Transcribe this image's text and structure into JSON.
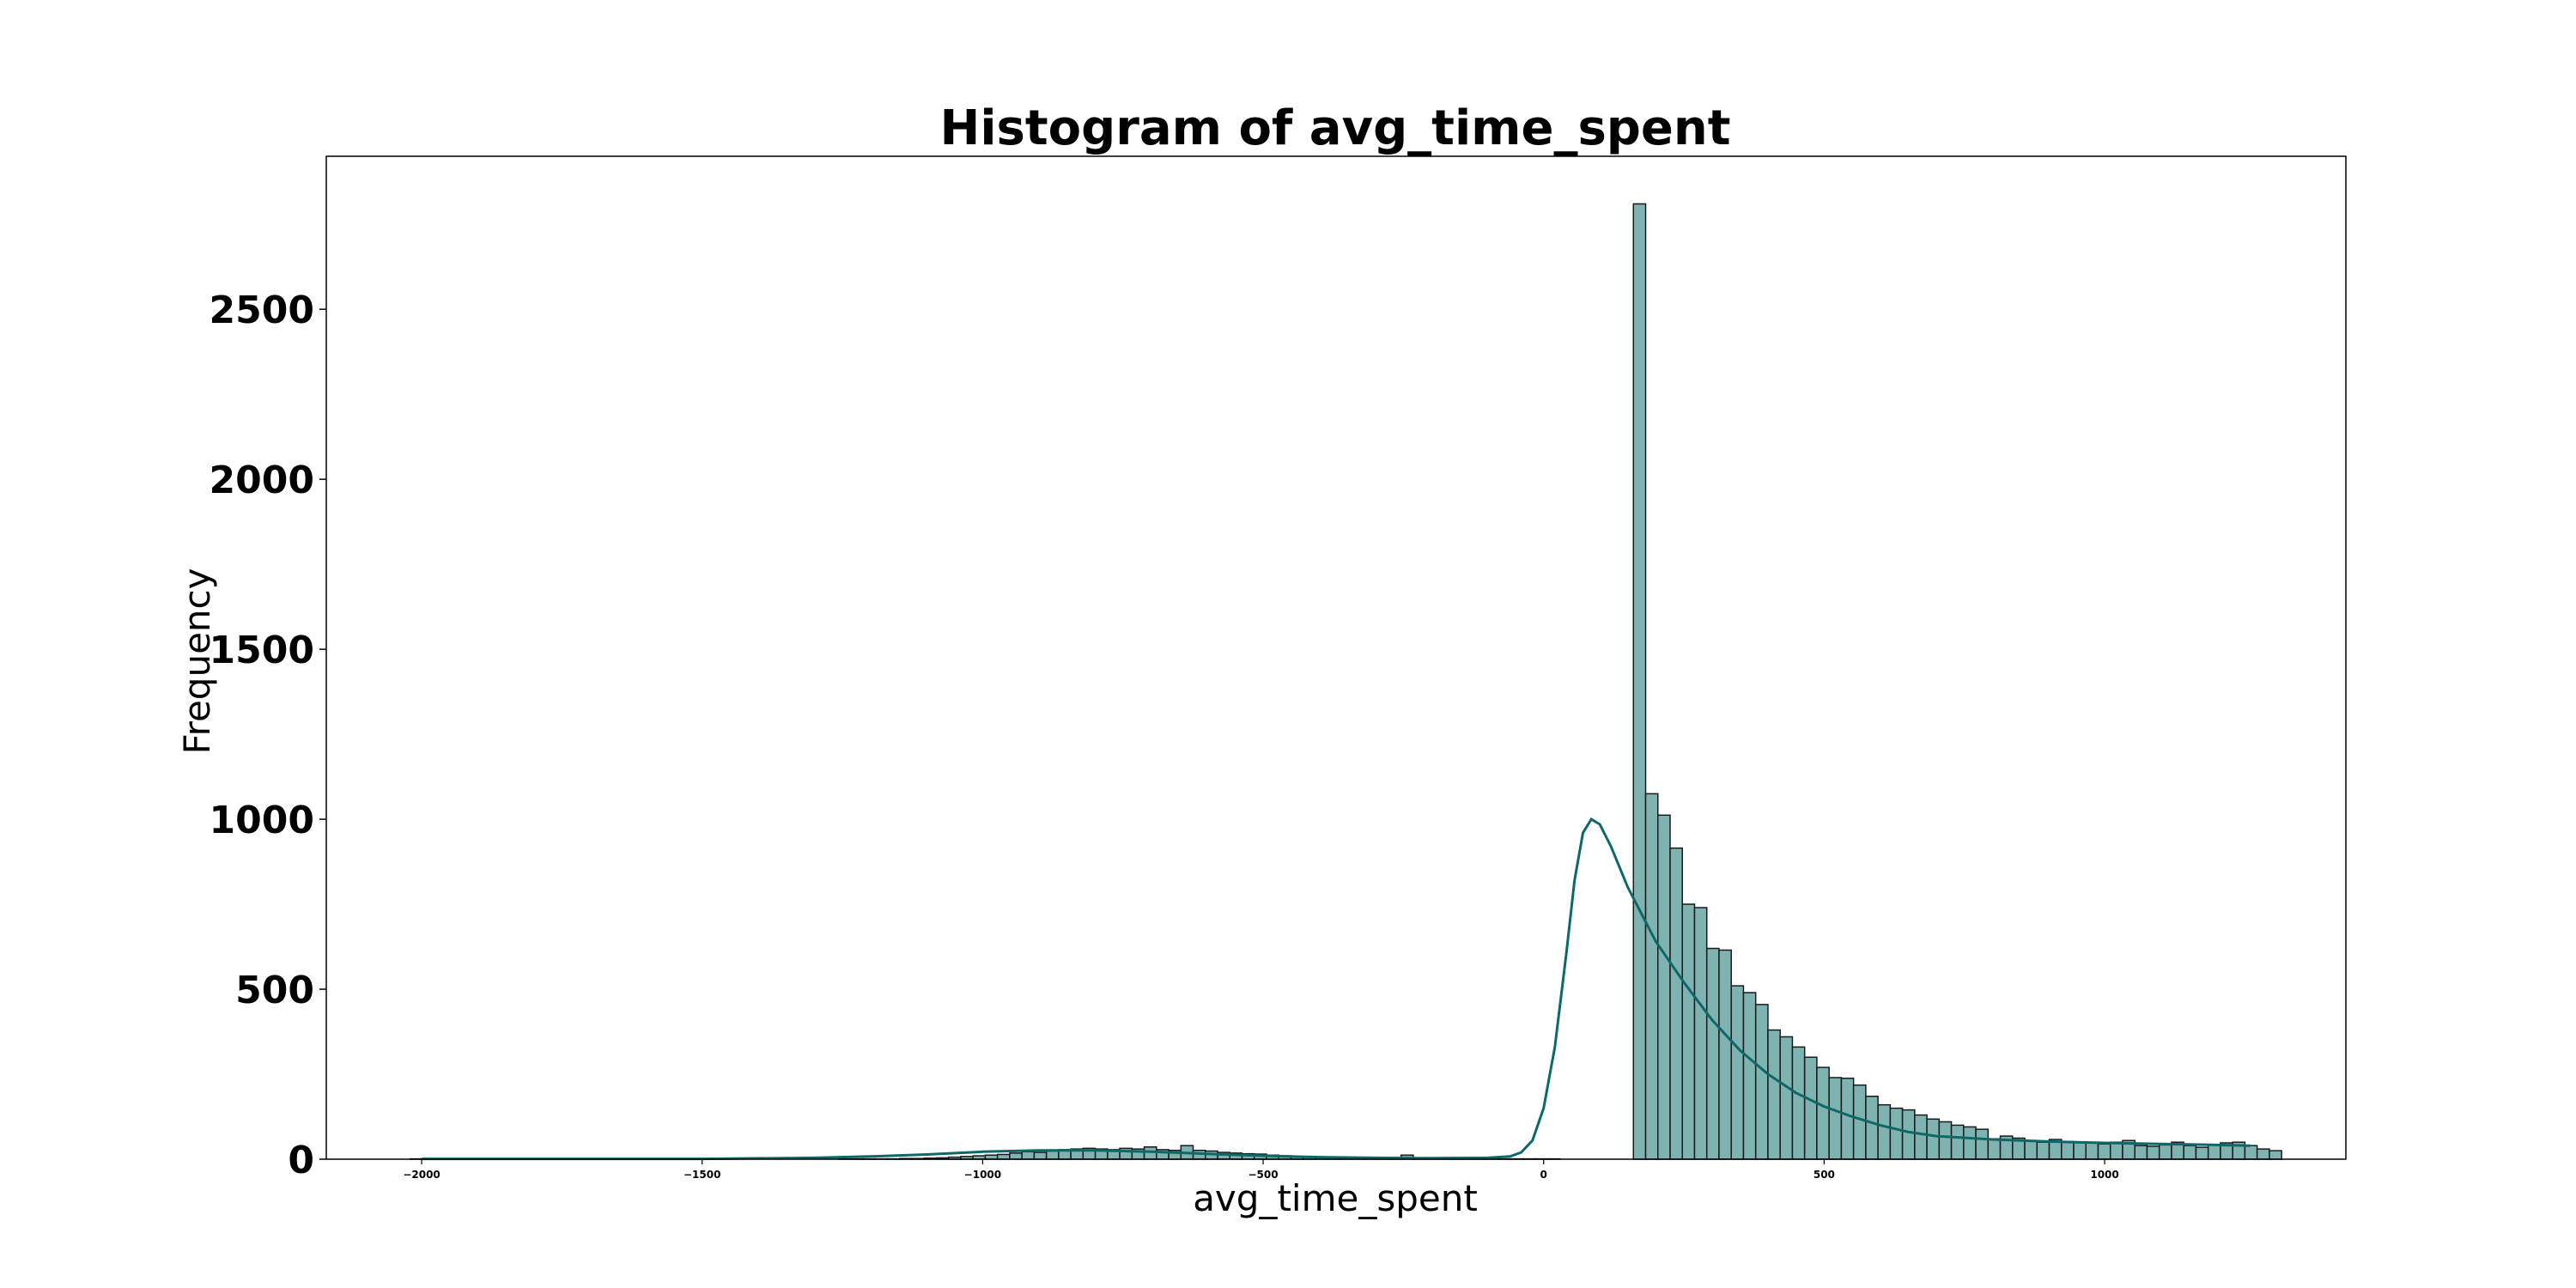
{
  "chart_data": {
    "type": "bar",
    "subtype": "histogram",
    "title": "Histogram of avg_time_spent",
    "xlabel": "avg_time_spent",
    "ylabel": "Frequency",
    "xlim": [
      -2170,
      1430
    ],
    "ylim": [
      0,
      2950
    ],
    "xticks": [
      -2000,
      -1500,
      -1000,
      -500,
      0,
      500,
      1000
    ],
    "xtick_labels": [
      "−2000",
      "−1500",
      "−1000",
      "−500",
      "0",
      "500",
      "1000"
    ],
    "yticks": [
      0,
      500,
      1000,
      1500,
      2000,
      2500
    ],
    "ytick_labels": [
      "0",
      "500",
      "1000",
      "1500",
      "2000",
      "2500"
    ],
    "grid": false,
    "bin_start": -2020,
    "bin_width": 21.8,
    "counts": [
      1,
      0,
      0,
      0,
      0,
      0,
      0,
      0,
      0,
      0,
      0,
      1,
      0,
      0,
      0,
      0,
      0,
      0,
      0,
      0,
      0,
      0,
      0,
      1,
      0,
      0,
      0,
      0,
      0,
      0,
      0,
      0,
      0,
      0,
      0,
      1,
      1,
      1,
      1,
      1,
      2,
      2,
      3,
      4,
      6,
      8,
      10,
      12,
      14,
      18,
      22,
      20,
      24,
      28,
      30,
      32,
      30,
      28,
      32,
      30,
      36,
      28,
      26,
      40,
      26,
      24,
      20,
      18,
      16,
      15,
      12,
      10,
      8,
      8,
      6,
      5,
      4,
      4,
      4,
      3,
      3,
      12,
      3,
      2,
      2,
      2,
      2,
      1,
      1,
      1,
      1,
      1,
      1,
      1,
      0,
      0,
      0,
      0,
      0,
      0,
      2810,
      1075,
      1012,
      915,
      750,
      740,
      620,
      615,
      510,
      490,
      455,
      380,
      360,
      330,
      300,
      270,
      240,
      238,
      218,
      185,
      160,
      150,
      145,
      130,
      118,
      110,
      100,
      95,
      88,
      60,
      68,
      62,
      55,
      50,
      58,
      52,
      50,
      48,
      45,
      50,
      55,
      40,
      38,
      42,
      50,
      40,
      35,
      42,
      48,
      50,
      40,
      30,
      25
    ],
    "kde": [
      [
        -2000,
        1
      ],
      [
        -1500,
        1
      ],
      [
        -1300,
        4
      ],
      [
        -1200,
        8
      ],
      [
        -1100,
        14
      ],
      [
        -1000,
        22
      ],
      [
        -900,
        26
      ],
      [
        -800,
        26
      ],
      [
        -700,
        22
      ],
      [
        -600,
        16
      ],
      [
        -500,
        10
      ],
      [
        -400,
        6
      ],
      [
        -300,
        4
      ],
      [
        -200,
        3
      ],
      [
        -100,
        4
      ],
      [
        -60,
        8
      ],
      [
        -40,
        20
      ],
      [
        -20,
        55
      ],
      [
        0,
        150
      ],
      [
        20,
        330
      ],
      [
        40,
        600
      ],
      [
        55,
        820
      ],
      [
        70,
        960
      ],
      [
        85,
        1000
      ],
      [
        100,
        985
      ],
      [
        120,
        920
      ],
      [
        150,
        800
      ],
      [
        200,
        640
      ],
      [
        250,
        520
      ],
      [
        300,
        410
      ],
      [
        350,
        320
      ],
      [
        400,
        250
      ],
      [
        450,
        195
      ],
      [
        500,
        155
      ],
      [
        550,
        125
      ],
      [
        600,
        100
      ],
      [
        650,
        80
      ],
      [
        700,
        68
      ],
      [
        800,
        58
      ],
      [
        900,
        52
      ],
      [
        1000,
        48
      ],
      [
        1100,
        45
      ],
      [
        1200,
        42
      ],
      [
        1260,
        40
      ]
    ],
    "colors": {
      "bar_fill": "#7fb3b1",
      "bar_edge": "#1a1a1a",
      "kde_line": "#0e6868"
    }
  }
}
